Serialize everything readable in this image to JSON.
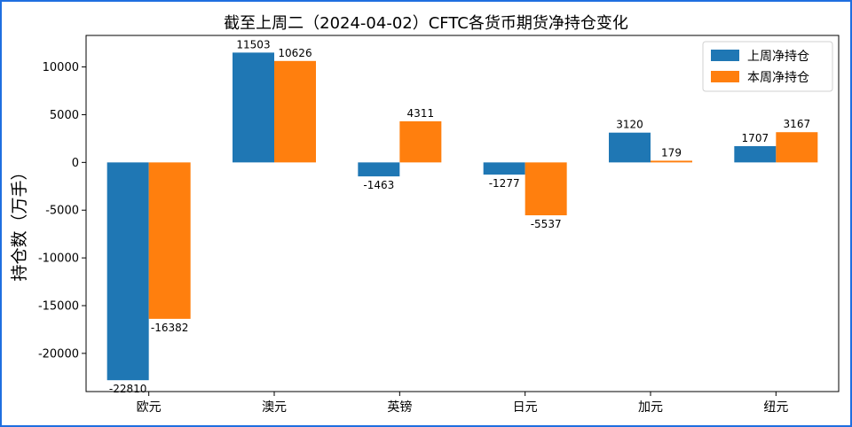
{
  "chart_data": {
    "type": "bar",
    "title": "截至上周二（2024-04-02）CFTC各货币期货净持仓变化",
    "xlabel": "",
    "ylabel": "持仓数（万手）",
    "categories": [
      "欧元",
      "澳元",
      "英镑",
      "日元",
      "加元",
      "纽元"
    ],
    "series": [
      {
        "name": "上周净持仓",
        "color": "#1f77b4",
        "values": [
          -22810,
          11503,
          -1463,
          -1277,
          3120,
          1707
        ]
      },
      {
        "name": "本周净持仓",
        "color": "#ff7f0e",
        "values": [
          -16382,
          10626,
          4311,
          -5537,
          179,
          3167
        ]
      }
    ],
    "ylim": [
      -24000,
      13300
    ],
    "yticks": [
      -20000,
      -15000,
      -10000,
      -5000,
      0,
      5000,
      10000
    ],
    "grid": false,
    "legend_position": "top-right"
  }
}
